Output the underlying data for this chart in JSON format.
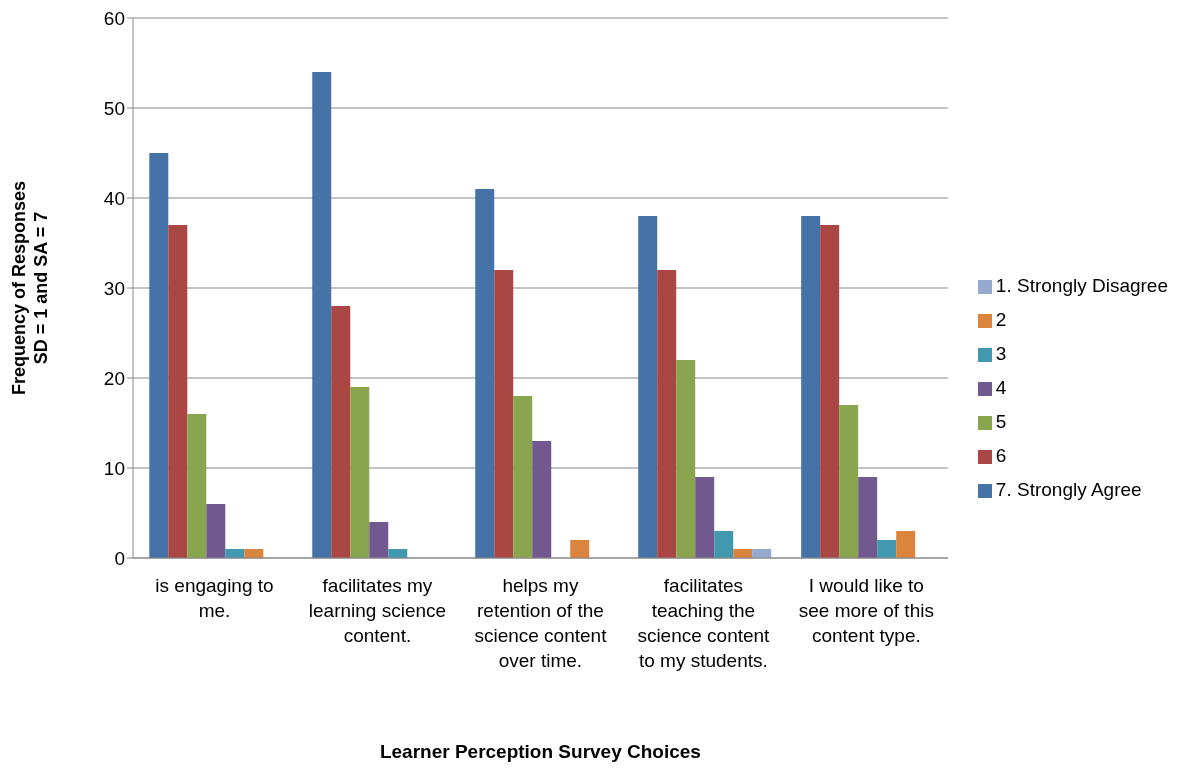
{
  "chart_data": {
    "type": "bar",
    "xlabel": "Learner Perception Survey Choices",
    "ylabel": "Frequency of Responses\nSD = 1 and SA = 7",
    "categories": [
      "is engaging to me.",
      "facilitates my learning science content.",
      "helps my retention of the science content over time.",
      "facilitates teaching the science content to my students.",
      "I would like to see more of this content type."
    ],
    "series": [
      {
        "name": "7. Strongly Agree",
        "color": "#4572a7",
        "values": [
          45,
          54,
          41,
          38,
          38
        ]
      },
      {
        "name": "6",
        "color": "#aa4643",
        "values": [
          37,
          28,
          32,
          32,
          37
        ]
      },
      {
        "name": "5",
        "color": "#89a54e",
        "values": [
          16,
          19,
          18,
          22,
          17
        ]
      },
      {
        "name": "4",
        "color": "#71588f",
        "values": [
          6,
          4,
          13,
          9,
          9
        ]
      },
      {
        "name": "3",
        "color": "#4198af",
        "values": [
          1,
          1,
          0,
          3,
          2
        ]
      },
      {
        "name": "2",
        "color": "#db843d",
        "values": [
          1,
          0,
          2,
          1,
          3
        ]
      },
      {
        "name": "1. Strongly Disagree",
        "color": "#93a9cf",
        "values": [
          0,
          0,
          0,
          1,
          0
        ]
      }
    ],
    "ylim": [
      0,
      60
    ],
    "yticks": [
      0,
      10,
      20,
      30,
      40,
      50,
      60
    ],
    "grid": "y",
    "legend": "right"
  }
}
